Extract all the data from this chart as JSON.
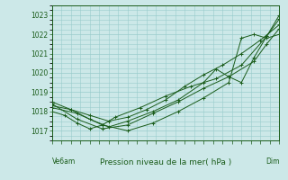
{
  "bg_color": "#cce8e8",
  "plot_bg_color": "#cce8e8",
  "grid_color": "#99cccc",
  "line_color": "#1a5c1a",
  "title": "Pression niveau de la mer( hPa )",
  "xlabel_left": "Ve6am",
  "xlabel_right": "Dim",
  "ylim": [
    1016.5,
    1023.5
  ],
  "yticks": [
    1017,
    1018,
    1019,
    1020,
    1021,
    1022,
    1023
  ],
  "xlim": [
    0,
    36
  ],
  "series": [
    [
      0,
      1018.3,
      3,
      1018.1,
      6,
      1017.8,
      9,
      1017.5,
      12,
      1017.7,
      15,
      1018.1,
      18,
      1018.6,
      21,
      1019.3,
      24,
      1019.9,
      27,
      1020.4,
      30,
      1021.0,
      33,
      1021.7,
      36,
      1022.5
    ],
    [
      0,
      1018.0,
      2,
      1017.8,
      4,
      1017.4,
      6,
      1017.1,
      8,
      1017.3,
      10,
      1017.7,
      14,
      1018.2,
      18,
      1018.8,
      22,
      1019.3,
      26,
      1019.7,
      30,
      1020.4,
      34,
      1021.9,
      36,
      1022.8
    ],
    [
      0,
      1018.5,
      3,
      1018.1,
      6,
      1017.6,
      9,
      1017.2,
      12,
      1017.5,
      16,
      1018.0,
      20,
      1018.6,
      24,
      1019.5,
      26,
      1020.2,
      28,
      1019.8,
      30,
      1019.5,
      32,
      1020.8,
      34,
      1021.9,
      36,
      1023.0
    ],
    [
      0,
      1018.2,
      4,
      1017.9,
      8,
      1017.3,
      12,
      1017.0,
      16,
      1017.4,
      20,
      1018.0,
      24,
      1018.7,
      28,
      1019.5,
      30,
      1021.8,
      32,
      1022.0,
      34,
      1021.8,
      36,
      1022.0
    ],
    [
      0,
      1018.4,
      4,
      1017.6,
      8,
      1017.1,
      12,
      1017.3,
      16,
      1017.9,
      20,
      1018.5,
      24,
      1019.2,
      28,
      1019.8,
      32,
      1020.6,
      34,
      1021.5,
      36,
      1022.3
    ]
  ]
}
